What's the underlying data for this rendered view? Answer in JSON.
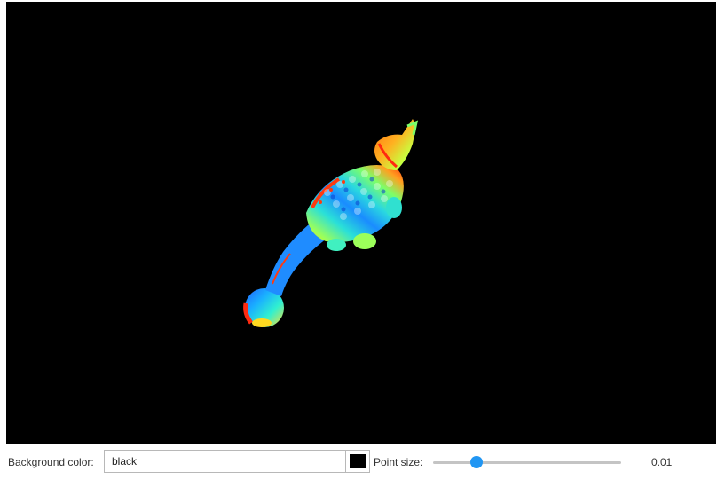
{
  "viewer": {
    "background": "#000000",
    "description_icon": "point-cloud-icon"
  },
  "controls": {
    "background_label": "Background color:",
    "background_value": "black",
    "swatch_color": "#000000",
    "point_size_label": "Point size:",
    "point_size_value": "0.01",
    "slider_fraction": 0.21,
    "accent_color": "#2196f3"
  }
}
